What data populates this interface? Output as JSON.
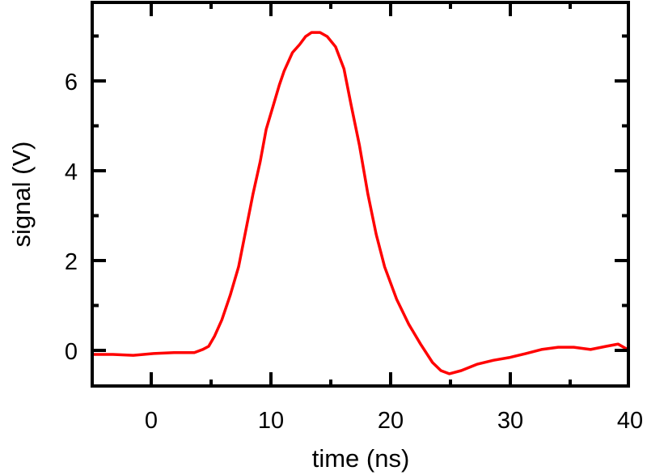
{
  "chart_data": {
    "type": "line",
    "title": "",
    "xlabel": "time (ns)",
    "ylabel": "signal (V)",
    "xlim": [
      -5,
      40
    ],
    "ylim": [
      -0.8,
      7.75
    ],
    "xticks": [
      0,
      10,
      20,
      30,
      40
    ],
    "yticks": [
      0,
      2,
      4,
      6
    ],
    "grid": false,
    "legend": null,
    "series": [
      {
        "name": "signal",
        "color": "#ff0000",
        "x": [
          -4.9,
          -3.2,
          -1.5,
          0.2,
          1.9,
          3.6,
          4.3,
          4.8,
          5.3,
          5.9,
          6.6,
          7.3,
          7.9,
          8.5,
          9.1,
          9.6,
          10.2,
          10.7,
          11.1,
          11.8,
          12.4,
          12.9,
          13.4,
          14.1,
          14.7,
          15.4,
          16.1,
          16.7,
          17.4,
          18.1,
          18.8,
          19.5,
          20.5,
          21.5,
          22.5,
          23.5,
          24.2,
          24.9,
          25.9,
          27.2,
          28.6,
          29.9,
          31.3,
          32.6,
          34.0,
          35.3,
          36.7,
          38.0,
          39.0,
          39.8
        ],
        "y": [
          -0.09,
          -0.09,
          -0.11,
          -0.07,
          -0.05,
          -0.05,
          0.02,
          0.09,
          0.32,
          0.68,
          1.23,
          1.86,
          2.67,
          3.48,
          4.2,
          4.92,
          5.46,
          5.91,
          6.22,
          6.63,
          6.81,
          6.99,
          7.08,
          7.08,
          6.99,
          6.76,
          6.27,
          5.46,
          4.56,
          3.48,
          2.58,
          1.86,
          1.14,
          0.59,
          0.14,
          -0.27,
          -0.45,
          -0.52,
          -0.45,
          -0.31,
          -0.22,
          -0.16,
          -0.07,
          0.02,
          0.07,
          0.07,
          0.02,
          0.09,
          0.14,
          0.02
        ]
      }
    ]
  },
  "axes": {
    "x_tick_labels": [
      "0",
      "10",
      "20",
      "30",
      "40"
    ],
    "y_tick_labels": [
      "0",
      "2",
      "4",
      "6"
    ],
    "xlabel": "time (ns)",
    "ylabel": "signal (V)"
  }
}
